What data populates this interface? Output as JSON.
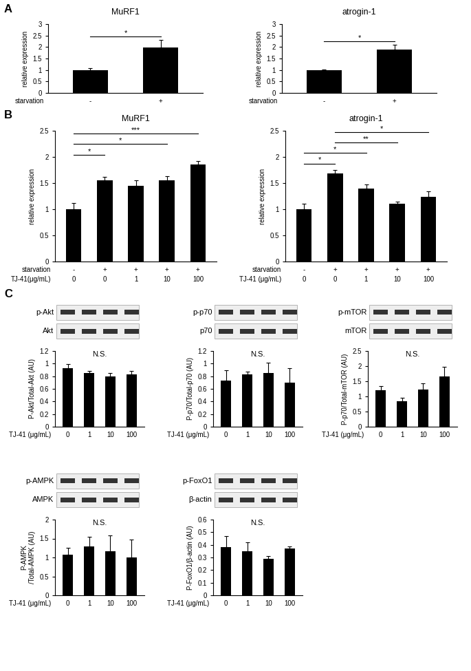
{
  "chart_data": [
    {
      "type": "bar",
      "panel": "A",
      "title": "MuRF1",
      "ylabel": "relative expression",
      "xlabel": "starvation",
      "categories": [
        "-",
        "+"
      ],
      "values": [
        1.0,
        1.97
      ],
      "errors": [
        0.08,
        0.33
      ],
      "color": "#000000",
      "ylim": [
        0,
        3
      ],
      "yticks": [
        0,
        0.5,
        1,
        1.5,
        2,
        2.5,
        3
      ],
      "significance": [
        {
          "from": 0,
          "to": 1,
          "label": "*"
        }
      ]
    },
    {
      "type": "bar",
      "title": "atrogin-1",
      "ylabel": "relative expression",
      "xlabel": "starvation",
      "categories": [
        "-",
        "+"
      ],
      "values": [
        1.0,
        1.9
      ],
      "errors": [
        0.02,
        0.2
      ],
      "color": "#000000",
      "ylim": [
        0,
        3
      ],
      "yticks": [
        0,
        0.5,
        1,
        1.5,
        2,
        2.5,
        3
      ],
      "significance": [
        {
          "from": 0,
          "to": 1,
          "label": "*"
        }
      ]
    },
    {
      "type": "bar",
      "panel": "B",
      "title": "MuRF1",
      "ylabel": "relative expression",
      "xlabel": "TJ-41(μg/mL)",
      "categories": [
        "0",
        "0",
        "1",
        "10",
        "100"
      ],
      "extra_rows": [
        {
          "label": "starvation",
          "values": [
            "-",
            "+",
            "+",
            "+",
            "+"
          ]
        }
      ],
      "values": [
        1.0,
        1.55,
        1.45,
        1.55,
        1.85
      ],
      "errors": [
        0.12,
        0.07,
        0.1,
        0.08,
        0.07
      ],
      "color": "#000000",
      "ylim": [
        0,
        2.5
      ],
      "yticks": [
        0,
        0.5,
        1,
        1.5,
        2,
        2.5
      ],
      "significance": [
        {
          "from": 0,
          "to": 1,
          "label": "*"
        },
        {
          "from": 0,
          "to": 3,
          "label": "*"
        },
        {
          "from": 0,
          "to": 4,
          "label": "***"
        }
      ]
    },
    {
      "type": "bar",
      "title": "atrogin-1",
      "ylabel": "relative expression",
      "xlabel": "TJ-41 (μg/mL)",
      "categories": [
        "0",
        "0",
        "1",
        "10",
        "100"
      ],
      "extra_rows": [
        {
          "label": "starvation",
          "values": [
            "-",
            "+",
            "+",
            "+",
            "+"
          ]
        }
      ],
      "values": [
        1.0,
        1.68,
        1.4,
        1.1,
        1.24
      ],
      "errors": [
        0.1,
        0.07,
        0.07,
        0.05,
        0.1
      ],
      "color": "#000000",
      "ylim": [
        0,
        2.5
      ],
      "yticks": [
        0,
        0.5,
        1,
        1.5,
        2,
        2.5
      ],
      "significance": [
        {
          "from": 0,
          "to": 1,
          "label": "*"
        },
        {
          "from": 0,
          "to": 2,
          "label": "*"
        },
        {
          "from": 1,
          "to": 3,
          "label": "**"
        },
        {
          "from": 1,
          "to": 4,
          "label": "*"
        }
      ]
    },
    {
      "type": "bar",
      "panel": "C",
      "blot_labels": [
        "p-Akt",
        "Akt"
      ],
      "ylabel": "P-Akt/Total-Akt (AU)",
      "xlabel": "TJ-41 (μg/mL)",
      "categories": [
        "0",
        "1",
        "10",
        "100"
      ],
      "values": [
        0.93,
        0.85,
        0.8,
        0.83
      ],
      "errors": [
        0.06,
        0.03,
        0.05,
        0.05
      ],
      "color": "#000000",
      "ylim": [
        0,
        1.2
      ],
      "yticks": [
        0,
        0.2,
        0.4,
        0.6,
        0.8,
        1,
        1.2
      ],
      "annotation": "N.S."
    },
    {
      "type": "bar",
      "blot_labels": [
        "p-p70",
        "p70"
      ],
      "ylabel": "P-p70/Total-p70 (AU)",
      "xlabel": "TJ-41 (μg/mL)",
      "categories": [
        "0",
        "1",
        "10",
        "100"
      ],
      "values": [
        0.73,
        0.83,
        0.85,
        0.7
      ],
      "errors": [
        0.17,
        0.04,
        0.17,
        0.23
      ],
      "color": "#000000",
      "ylim": [
        0,
        1.2
      ],
      "yticks": [
        0,
        0.2,
        0.4,
        0.6,
        0.8,
        1,
        1.2
      ],
      "annotation": "N.S."
    },
    {
      "type": "bar",
      "blot_labels": [
        "p-mTOR",
        "mTOR"
      ],
      "ylabel": "P-p70/Total-mTOR (AU)",
      "xlabel": "TJ-41 (μg/mL)",
      "categories": [
        "0",
        "1",
        "10",
        "100"
      ],
      "values": [
        1.2,
        0.85,
        1.22,
        1.65
      ],
      "errors": [
        0.15,
        0.1,
        0.22,
        0.33
      ],
      "color": "#000000",
      "ylim": [
        0,
        2.5
      ],
      "yticks": [
        0,
        0.5,
        1,
        1.5,
        2,
        2.5
      ],
      "annotation": "N.S."
    },
    {
      "type": "bar",
      "blot_labels": [
        "p-AMPK",
        "AMPK"
      ],
      "ylabel": "P-AMPK\n/Total-AMPK (AU)",
      "xlabel": "TJ-41 (μg/mL)",
      "categories": [
        "0",
        "1",
        "10",
        "100"
      ],
      "values": [
        1.07,
        1.3,
        1.17,
        1.0
      ],
      "errors": [
        0.18,
        0.25,
        0.42,
        0.48
      ],
      "color": "#000000",
      "ylim": [
        0,
        2
      ],
      "yticks": [
        0,
        0.5,
        1,
        1.5,
        2
      ],
      "annotation": "N.S."
    },
    {
      "type": "bar",
      "blot_labels": [
        "p-FoxO1",
        "β-actin"
      ],
      "ylabel": "P-FoxO1/β-actin (AU)",
      "xlabel": "TJ-41 (μg/mL)",
      "categories": [
        "0",
        "1",
        "10",
        "100"
      ],
      "values": [
        0.38,
        0.35,
        0.29,
        0.37
      ],
      "errors": [
        0.09,
        0.07,
        0.02,
        0.02
      ],
      "color": "#000000",
      "ylim": [
        0,
        0.6
      ],
      "yticks": [
        0,
        0.1,
        0.2,
        0.3,
        0.4,
        0.5,
        0.6
      ],
      "annotation": "N.S."
    }
  ]
}
